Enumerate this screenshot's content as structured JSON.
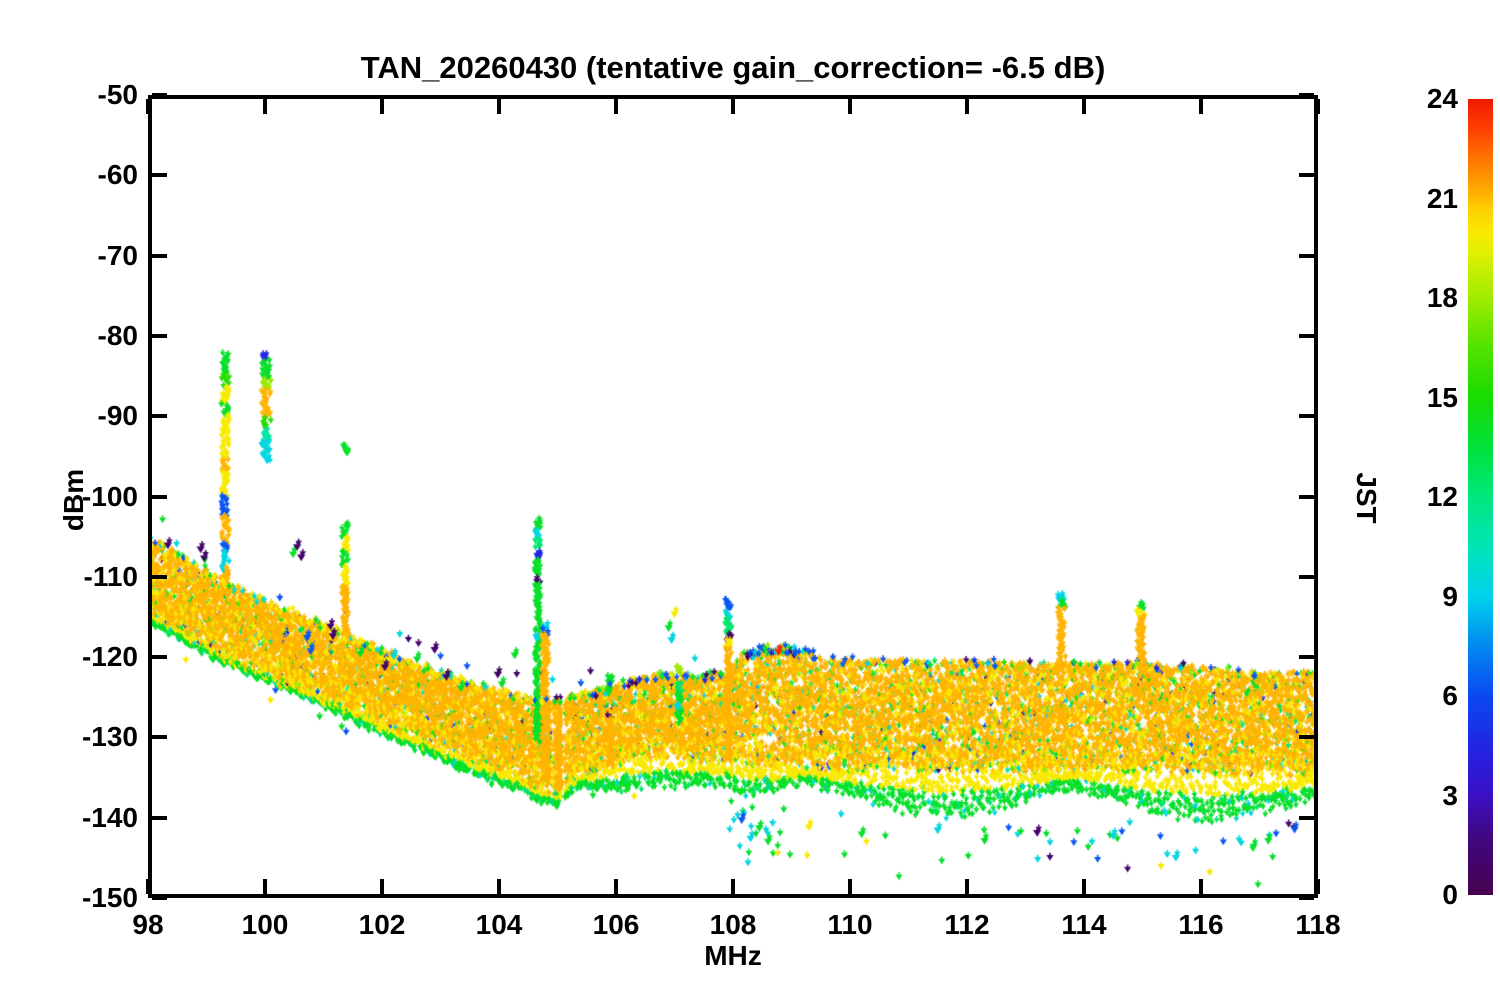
{
  "figure": {
    "title": "TAN_20260430 (tentative gain_correction= -6.5 dB)"
  },
  "chart_data": {
    "type": "scatter",
    "title": "TAN_20260430 (tentative gain_correction= -6.5 dB)",
    "xlabel": "MHz",
    "ylabel": "dBm",
    "xlim": [
      98,
      118
    ],
    "ylim": [
      -150,
      -50
    ],
    "xticks": [
      98,
      100,
      102,
      104,
      106,
      108,
      110,
      112,
      114,
      116,
      118
    ],
    "yticks": [
      -50,
      -60,
      -70,
      -80,
      -90,
      -100,
      -110,
      -120,
      -130,
      -140,
      -150
    ],
    "grid": false,
    "legend": "colorbar-right",
    "colorbar": {
      "label": "JST",
      "min": 0,
      "max": 24,
      "ticks": [
        24,
        21,
        18,
        15,
        12,
        9,
        6,
        3,
        0
      ],
      "stops": [
        [
          0.0,
          "#46024E"
        ],
        [
          0.07,
          "#41077F"
        ],
        [
          0.125,
          "#3A10C4"
        ],
        [
          0.18,
          "#2422E2"
        ],
        [
          0.25,
          "#0B49F2"
        ],
        [
          0.315,
          "#008CF0"
        ],
        [
          0.375,
          "#00D2EC"
        ],
        [
          0.44,
          "#00E6B4"
        ],
        [
          0.5,
          "#00E77E"
        ],
        [
          0.56,
          "#00E23C"
        ],
        [
          0.625,
          "#18DC00"
        ],
        [
          0.69,
          "#55E300"
        ],
        [
          0.75,
          "#A0EB00"
        ],
        [
          0.8,
          "#D8F000"
        ],
        [
          0.83,
          "#F8EC00"
        ],
        [
          0.862,
          "#FFD000"
        ],
        [
          0.883,
          "#FFAE00"
        ],
        [
          0.925,
          "#FF7400"
        ],
        [
          0.965,
          "#FF3C00"
        ],
        [
          1.0,
          "#EE1A00"
        ]
      ]
    },
    "palette_jst": {
      "purple": 0.9,
      "darkblue": 4.6,
      "blue": 6.3,
      "lightblue": 7.9,
      "cyan": 9.3,
      "teal": 10.9,
      "springgreen": 12.3,
      "green": 13.9,
      "brightgreen": 15.4,
      "yellowgreen": 17.9,
      "yellow": 20.0,
      "orange": 21.1,
      "darkorange": 22.0,
      "red": 23.6
    },
    "band_color_weights": [
      [
        "orange",
        0.5
      ],
      [
        "yellow",
        0.18
      ],
      [
        "yellowgreen",
        0.04
      ],
      [
        "green",
        0.1
      ],
      [
        "brightgreen",
        0.05
      ],
      [
        "springgreen",
        0.04
      ],
      [
        "cyan",
        0.03
      ],
      [
        "teal",
        0.015
      ],
      [
        "blue",
        0.025
      ],
      [
        "darkblue",
        0.01
      ],
      [
        "purple",
        0.01
      ]
    ],
    "cap_colors_pre": [
      [
        "yellow",
        0.55
      ],
      [
        "green",
        0.25
      ],
      [
        "cyan",
        0.12
      ],
      [
        "blue",
        0.08
      ]
    ],
    "cap_colors_post": [
      [
        "blue",
        0.38
      ],
      [
        "darkblue",
        0.12
      ],
      [
        "green",
        0.2
      ],
      [
        "purple",
        0.12
      ],
      [
        "cyan",
        0.08
      ],
      [
        "yellowgreen",
        0.1
      ]
    ],
    "envelope": [
      [
        98.0,
        -105.2,
        -114.5
      ],
      [
        98.4,
        -106.6,
        -116.2
      ],
      [
        98.8,
        -108.4,
        -117.8
      ],
      [
        99.2,
        -110.2,
        -119.6
      ],
      [
        99.6,
        -111.6,
        -121.0
      ],
      [
        100.0,
        -112.9,
        -122.3
      ],
      [
        100.5,
        -114.4,
        -123.9
      ],
      [
        101.0,
        -116.1,
        -125.4
      ],
      [
        101.5,
        -117.6,
        -126.9
      ],
      [
        102.0,
        -119.1,
        -128.5
      ],
      [
        102.5,
        -120.6,
        -130.0
      ],
      [
        103.0,
        -121.9,
        -131.5
      ],
      [
        103.5,
        -123.1,
        -133.0
      ],
      [
        104.0,
        -124.2,
        -134.3
      ],
      [
        104.4,
        -124.9,
        -135.3
      ],
      [
        104.7,
        -125.3,
        -136.8
      ],
      [
        105.0,
        -125.4,
        -137.3
      ],
      [
        105.3,
        -124.7,
        -135.2
      ],
      [
        105.8,
        -123.9,
        -134.2
      ],
      [
        106.3,
        -122.7,
        -133.0
      ],
      [
        106.8,
        -121.9,
        -132.5
      ],
      [
        107.4,
        -122.3,
        -133.2
      ],
      [
        107.95,
        -121.9,
        -133.4
      ],
      [
        108.1,
        -119.9,
        -133.5
      ],
      [
        108.5,
        -118.9,
        -133.9
      ],
      [
        108.9,
        -118.7,
        -134.0
      ],
      [
        109.4,
        -119.6,
        -134.2
      ],
      [
        110.0,
        -120.2,
        -134.3
      ],
      [
        111.0,
        -120.4,
        -134.3
      ],
      [
        112.0,
        -120.5,
        -134.4
      ],
      [
        113.0,
        -120.7,
        -134.4
      ],
      [
        114.0,
        -120.8,
        -134.5
      ],
      [
        115.0,
        -120.8,
        -134.6
      ],
      [
        116.0,
        -121.2,
        -134.7
      ],
      [
        117.0,
        -122.0,
        -134.8
      ],
      [
        118.0,
        -121.8,
        -135.0
      ]
    ],
    "fringe_depth_db": [
      [
        98,
        1.3
      ],
      [
        103,
        1.5
      ],
      [
        104.3,
        2.8
      ],
      [
        104.7,
        3.8
      ],
      [
        105.05,
        3.8
      ],
      [
        105.4,
        2.8
      ],
      [
        106.0,
        4.2
      ],
      [
        106.6,
        4.5
      ],
      [
        107.2,
        3.5
      ],
      [
        107.9,
        3.2
      ],
      [
        108.15,
        5.0
      ],
      [
        109,
        5.7
      ],
      [
        112,
        6.0
      ],
      [
        115,
        6.0
      ],
      [
        118,
        6.2
      ]
    ],
    "gaps": [
      [
        104.88,
        104.93
      ],
      [
        105.07,
        105.12
      ]
    ],
    "blue_cap_regions": [
      [
        105.5,
        107.9,
        0.45
      ],
      [
        108.2,
        109.4,
        0.8
      ],
      [
        109.4,
        118,
        0.14
      ]
    ],
    "spikes": [
      {
        "x": 99.32,
        "w": 0.13,
        "segments": [
          [
            "green",
            -82.2,
            -84.8
          ],
          [
            "brightgreen",
            -84.8,
            -86.5
          ],
          [
            "yellow",
            -86.5,
            -88.5
          ],
          [
            "green",
            -88.5,
            -90.0
          ],
          [
            "yellow",
            -90.0,
            -95.5
          ],
          [
            "orange",
            -95.5,
            -97.0
          ],
          [
            "yellow",
            -97.0,
            -100.0
          ],
          [
            "blue",
            -100.0,
            -102.5
          ],
          [
            "orange",
            -102.5,
            -106.0
          ],
          [
            "blue",
            -106.0,
            -107.0
          ],
          [
            "cyan",
            -107.0,
            -109.0
          ],
          [
            "orange",
            -109.0,
            -112.0
          ]
        ]
      },
      {
        "x": 100.02,
        "w": 0.16,
        "segments": [
          [
            "darkblue",
            -82.3,
            -83.0
          ],
          [
            "green",
            -83.0,
            -85.5
          ],
          [
            "yellowgreen",
            -85.5,
            -86.8
          ],
          [
            "orange",
            -86.8,
            -90.2
          ],
          [
            "brightgreen",
            -90.2,
            -91.7
          ],
          [
            "teal",
            -91.7,
            -93.2
          ],
          [
            "cyan",
            -93.2,
            -95.7
          ]
        ]
      },
      {
        "x": 101.37,
        "w": 0.11,
        "segments": [
          [
            "green",
            -93.7,
            -94.5
          ],
          [
            "green",
            -103.4,
            -105.2
          ],
          [
            "yellow",
            -105.2,
            -106.8
          ],
          [
            "green",
            -106.8,
            -108.8
          ],
          [
            "yellow",
            -108.8,
            -111.3
          ],
          [
            "orange",
            -111.3,
            -117.5
          ]
        ]
      },
      {
        "x": 104.66,
        "w": 0.1,
        "segments": [
          [
            "green",
            -102.8,
            -104.3
          ],
          [
            "cyan",
            -104.3,
            -105.2
          ],
          [
            "springgreen",
            -105.3,
            -106.6
          ],
          [
            "darkblue",
            -106.9,
            -107.9
          ],
          [
            "green",
            -107.9,
            -109.9
          ],
          [
            "purple",
            -110.2,
            -110.9
          ],
          [
            "green",
            -111.0,
            -117.3
          ],
          [
            "cyan",
            -117.3,
            -118.2
          ],
          [
            "green",
            -118.2,
            -130.5
          ]
        ]
      },
      {
        "x": 104.79,
        "w": 0.13,
        "segments": [
          [
            "cyan",
            -115.8,
            -116.5
          ],
          [
            "blue",
            -116.5,
            -117.3
          ],
          [
            "orange",
            -117.3,
            -135.5
          ]
        ]
      },
      {
        "x": 105.02,
        "w": 0.1,
        "segments": [
          [
            "purple",
            -125.1,
            -125.6
          ],
          [
            "orange",
            -125.6,
            -136.8
          ]
        ]
      },
      {
        "x": 105.9,
        "w": 0.09,
        "segments": [
          [
            "green",
            -122.3,
            -123.2
          ],
          [
            "green",
            -123.8,
            -124.6
          ],
          [
            "purple",
            -127.2,
            -127.8
          ],
          [
            "orange",
            -127.8,
            -133.8
          ]
        ]
      },
      {
        "x": 107.08,
        "w": 0.09,
        "segments": [
          [
            "yellowgreen",
            -121.3,
            -122.0
          ],
          [
            "springgreen",
            -123.3,
            -124.5
          ],
          [
            "green",
            -124.5,
            -126.0
          ],
          [
            "cyan",
            -126.0,
            -126.8
          ],
          [
            "green",
            -126.8,
            -128.3
          ]
        ]
      },
      {
        "x": 107.92,
        "w": 0.11,
        "segments": [
          [
            "blue",
            -112.9,
            -114.1
          ],
          [
            "cyan",
            -114.3,
            -115.2
          ],
          [
            "springgreen",
            -115.3,
            -116.9
          ],
          [
            "purple",
            -117.1,
            -117.9
          ],
          [
            "yellow",
            -117.9,
            -119.0
          ],
          [
            "orange",
            -119.0,
            -133.0
          ]
        ]
      },
      {
        "x": 113.62,
        "w": 0.13,
        "segments": [
          [
            "cyan",
            -112.2,
            -113.1
          ],
          [
            "green",
            -113.1,
            -114.0
          ],
          [
            "orange",
            -114.0,
            -121.5
          ]
        ]
      },
      {
        "x": 114.97,
        "w": 0.13,
        "segments": [
          [
            "green",
            -113.2,
            -114.2
          ],
          [
            "yellow",
            -114.2,
            -115.0
          ],
          [
            "orange",
            -115.0,
            -121.5
          ]
        ]
      }
    ],
    "outliers": [
      [
        98.34,
        -106.1,
        "purple"
      ],
      [
        98.9,
        -106.6,
        "purple"
      ],
      [
        98.96,
        -107.7,
        "purple"
      ],
      [
        100.48,
        -107.2,
        "green"
      ],
      [
        100.55,
        -106.3,
        "purple"
      ],
      [
        100.62,
        -107.6,
        "purple"
      ],
      [
        100.72,
        -117.6,
        "blue"
      ],
      [
        100.78,
        -119.3,
        "blue"
      ],
      [
        101.12,
        -116.2,
        "purple"
      ],
      [
        101.16,
        -117.4,
        "purple"
      ],
      [
        101.63,
        -119.6,
        "green"
      ],
      [
        102.05,
        -121.3,
        "purple"
      ],
      [
        102.2,
        -119.9,
        "cyan"
      ],
      [
        102.6,
        -120.3,
        "green"
      ],
      [
        102.9,
        -119.1,
        "purple"
      ],
      [
        103.1,
        -122.5,
        "purple"
      ],
      [
        103.35,
        -123.9,
        "green"
      ],
      [
        103.98,
        -122.2,
        "purple"
      ],
      [
        104.05,
        -123.4,
        "green"
      ],
      [
        104.27,
        -119.8,
        "green"
      ],
      [
        106.9,
        -116.4,
        "green"
      ],
      [
        106.95,
        -117.9,
        "cyan"
      ],
      [
        107.0,
        -114.7,
        "yellow"
      ],
      [
        108.15,
        -140.3,
        "blue"
      ],
      [
        108.3,
        -142.6,
        "cyan"
      ],
      [
        108.45,
        -141.3,
        "green"
      ],
      [
        108.6,
        -143.0,
        "green"
      ],
      [
        108.78,
        -119.4,
        "red"
      ],
      [
        109.3,
        -141.2,
        "yellow"
      ],
      [
        110.2,
        -142.1,
        "green"
      ],
      [
        111.5,
        -141.6,
        "cyan"
      ],
      [
        112.3,
        -142.9,
        "green"
      ],
      [
        113.2,
        -141.9,
        "purple"
      ],
      [
        114.5,
        -142.3,
        "cyan"
      ],
      [
        115.57,
        -145.0,
        "cyan"
      ],
      [
        116.9,
        -143.6,
        "green"
      ],
      [
        117.15,
        -142.9,
        "green"
      ],
      [
        117.6,
        -141.5,
        "blue"
      ]
    ]
  }
}
